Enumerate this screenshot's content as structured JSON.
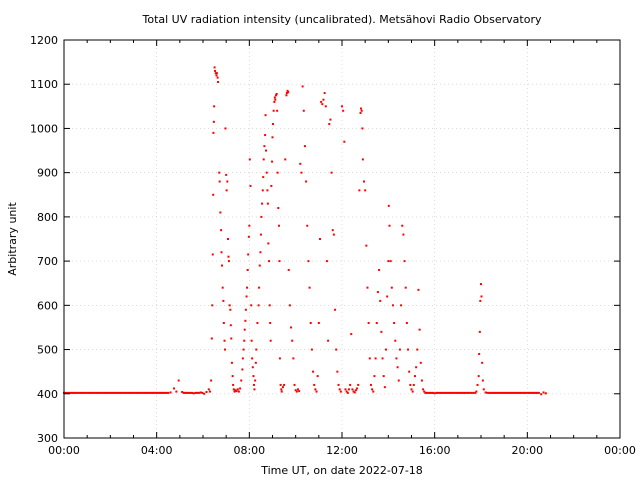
{
  "chart_data": {
    "type": "scatter",
    "title": "Total UV radiation intensity (uncalibrated). Metsähovi Radio Observatory",
    "xlabel": "Time UT, on date 2022-07-18",
    "ylabel": "Arbitrary unit",
    "xlim": [
      "00:00",
      "24:00"
    ],
    "ylim": [
      300,
      1200
    ],
    "x_ticks": [
      "00:00",
      "04:00",
      "08:00",
      "12:00",
      "16:00",
      "20:00",
      "00:00"
    ],
    "y_ticks": [
      "300",
      "400",
      "500",
      "600",
      "700",
      "800",
      "900",
      "1000",
      "1100",
      "1200"
    ],
    "grid": true,
    "legend": "none",
    "color": "#ff0000",
    "series": [
      {
        "x_unit": "hours UT",
        "points": [
          [
            0.0,
            402
          ],
          [
            0.5,
            402
          ],
          [
            1.0,
            402
          ],
          [
            1.5,
            402
          ],
          [
            2.0,
            402
          ],
          [
            2.5,
            402
          ],
          [
            3.0,
            402
          ],
          [
            3.5,
            402
          ],
          [
            4.0,
            402
          ],
          [
            4.5,
            402
          ],
          [
            4.6,
            403
          ],
          [
            4.75,
            412
          ],
          [
            4.85,
            405
          ],
          [
            4.95,
            430
          ],
          [
            5.1,
            404
          ],
          [
            5.3,
            402
          ],
          [
            5.6,
            401
          ],
          [
            5.9,
            403
          ],
          [
            6.05,
            400
          ],
          [
            6.15,
            404
          ],
          [
            6.25,
            410
          ],
          [
            6.3,
            405
          ],
          [
            6.35,
            430
          ],
          [
            6.38,
            525
          ],
          [
            6.4,
            600
          ],
          [
            6.42,
            715
          ],
          [
            6.44,
            850
          ],
          [
            6.45,
            990
          ],
          [
            6.47,
            1015
          ],
          [
            6.48,
            1050
          ],
          [
            6.5,
            1138
          ],
          [
            6.52,
            1130
          ],
          [
            6.55,
            1125
          ],
          [
            6.58,
            1120
          ],
          [
            6.6,
            1125
          ],
          [
            6.63,
            1115
          ],
          [
            6.65,
            1105
          ],
          [
            6.7,
            900
          ],
          [
            6.72,
            880
          ],
          [
            6.75,
            810
          ],
          [
            6.78,
            770
          ],
          [
            6.8,
            720
          ],
          [
            6.82,
            690
          ],
          [
            6.85,
            640
          ],
          [
            6.88,
            610
          ],
          [
            6.9,
            560
          ],
          [
            6.93,
            520
          ],
          [
            6.95,
            500
          ],
          [
            6.97,
            1000
          ],
          [
            7.0,
            895
          ],
          [
            7.02,
            860
          ],
          [
            7.05,
            880
          ],
          [
            7.08,
            750
          ],
          [
            7.1,
            710
          ],
          [
            7.12,
            700
          ],
          [
            7.15,
            600
          ],
          [
            7.18,
            590
          ],
          [
            7.2,
            555
          ],
          [
            7.22,
            525
          ],
          [
            7.25,
            470
          ],
          [
            7.28,
            440
          ],
          [
            7.3,
            420
          ],
          [
            7.33,
            410
          ],
          [
            7.36,
            405
          ],
          [
            7.4,
            408
          ],
          [
            7.45,
            406
          ],
          [
            7.5,
            410
          ],
          [
            7.55,
            405
          ],
          [
            7.6,
            412
          ],
          [
            7.65,
            430
          ],
          [
            7.7,
            455
          ],
          [
            7.72,
            480
          ],
          [
            7.75,
            500
          ],
          [
            7.78,
            520
          ],
          [
            7.8,
            545
          ],
          [
            7.83,
            565
          ],
          [
            7.85,
            590
          ],
          [
            7.88,
            620
          ],
          [
            7.9,
            640
          ],
          [
            7.93,
            680
          ],
          [
            7.95,
            715
          ],
          [
            7.98,
            755
          ],
          [
            8.0,
            780
          ],
          [
            8.02,
            930
          ],
          [
            8.05,
            870
          ],
          [
            8.08,
            600
          ],
          [
            8.1,
            520
          ],
          [
            8.12,
            480
          ],
          [
            8.15,
            460
          ],
          [
            8.18,
            440
          ],
          [
            8.2,
            420
          ],
          [
            8.22,
            410
          ],
          [
            8.25,
            430
          ],
          [
            8.28,
            470
          ],
          [
            8.3,
            500
          ],
          [
            8.35,
            560
          ],
          [
            8.4,
            600
          ],
          [
            8.42,
            640
          ],
          [
            8.45,
            690
          ],
          [
            8.48,
            720
          ],
          [
            8.5,
            760
          ],
          [
            8.52,
            800
          ],
          [
            8.55,
            830
          ],
          [
            8.58,
            860
          ],
          [
            8.6,
            890
          ],
          [
            8.62,
            930
          ],
          [
            8.65,
            960
          ],
          [
            8.68,
            985
          ],
          [
            8.7,
            1030
          ],
          [
            8.72,
            950
          ],
          [
            8.75,
            900
          ],
          [
            8.78,
            860
          ],
          [
            8.8,
            830
          ],
          [
            8.82,
            740
          ],
          [
            8.85,
            700
          ],
          [
            8.88,
            600
          ],
          [
            8.9,
            560
          ],
          [
            8.92,
            520
          ],
          [
            8.95,
            870
          ],
          [
            8.98,
            925
          ],
          [
            9.0,
            980
          ],
          [
            9.02,
            1010
          ],
          [
            9.05,
            1040
          ],
          [
            9.08,
            1060
          ],
          [
            9.1,
            1070
          ],
          [
            9.12,
            1065
          ],
          [
            9.15,
            1075
          ],
          [
            9.18,
            1078
          ],
          [
            9.2,
            1040
          ],
          [
            9.22,
            900
          ],
          [
            9.25,
            820
          ],
          [
            9.28,
            780
          ],
          [
            9.3,
            700
          ],
          [
            9.32,
            480
          ],
          [
            9.35,
            420
          ],
          [
            9.38,
            410
          ],
          [
            9.4,
            405
          ],
          [
            9.45,
            415
          ],
          [
            9.5,
            420
          ],
          [
            9.55,
            930
          ],
          [
            9.6,
            1075
          ],
          [
            9.62,
            1080
          ],
          [
            9.65,
            1085
          ],
          [
            9.68,
            1082
          ],
          [
            9.7,
            680
          ],
          [
            9.75,
            600
          ],
          [
            9.8,
            550
          ],
          [
            9.85,
            520
          ],
          [
            9.9,
            480
          ],
          [
            9.95,
            420
          ],
          [
            10.0,
            408
          ],
          [
            10.05,
            405
          ],
          [
            10.1,
            410
          ],
          [
            10.15,
            406
          ],
          [
            10.2,
            920
          ],
          [
            10.25,
            900
          ],
          [
            10.3,
            1095
          ],
          [
            10.35,
            1040
          ],
          [
            10.4,
            960
          ],
          [
            10.45,
            880
          ],
          [
            10.5,
            780
          ],
          [
            10.55,
            700
          ],
          [
            10.6,
            640
          ],
          [
            10.65,
            560
          ],
          [
            10.7,
            500
          ],
          [
            10.75,
            450
          ],
          [
            10.8,
            420
          ],
          [
            10.85,
            410
          ],
          [
            10.9,
            405
          ],
          [
            10.95,
            440
          ],
          [
            11.0,
            560
          ],
          [
            11.05,
            750
          ],
          [
            11.1,
            1060
          ],
          [
            11.15,
            1055
          ],
          [
            11.2,
            1065
          ],
          [
            11.25,
            1080
          ],
          [
            11.3,
            1050
          ],
          [
            11.35,
            700
          ],
          [
            11.4,
            520
          ],
          [
            11.45,
            1010
          ],
          [
            11.5,
            1020
          ],
          [
            11.55,
            900
          ],
          [
            11.6,
            770
          ],
          [
            11.65,
            760
          ],
          [
            11.7,
            590
          ],
          [
            11.75,
            500
          ],
          [
            11.8,
            450
          ],
          [
            11.85,
            420
          ],
          [
            11.9,
            410
          ],
          [
            11.95,
            405
          ],
          [
            12.0,
            1050
          ],
          [
            12.05,
            1040
          ],
          [
            12.1,
            970
          ],
          [
            12.15,
            410
          ],
          [
            12.2,
            405
          ],
          [
            12.25,
            402
          ],
          [
            12.3,
            410
          ],
          [
            12.35,
            420
          ],
          [
            12.4,
            535
          ],
          [
            12.45,
            410
          ],
          [
            12.5,
            405
          ],
          [
            12.55,
            403
          ],
          [
            12.6,
            408
          ],
          [
            12.65,
            412
          ],
          [
            12.7,
            420
          ],
          [
            12.75,
            860
          ],
          [
            12.8,
            1035
          ],
          [
            12.82,
            1045
          ],
          [
            12.85,
            1040
          ],
          [
            12.88,
            1000
          ],
          [
            12.9,
            930
          ],
          [
            12.95,
            880
          ],
          [
            13.0,
            860
          ],
          [
            13.05,
            735
          ],
          [
            13.1,
            640
          ],
          [
            13.15,
            560
          ],
          [
            13.2,
            480
          ],
          [
            13.25,
            420
          ],
          [
            13.3,
            410
          ],
          [
            13.35,
            405
          ],
          [
            13.4,
            440
          ],
          [
            13.45,
            480
          ],
          [
            13.5,
            560
          ],
          [
            13.55,
            630
          ],
          [
            13.6,
            680
          ],
          [
            13.65,
            610
          ],
          [
            13.7,
            540
          ],
          [
            13.75,
            480
          ],
          [
            13.8,
            440
          ],
          [
            13.85,
            415
          ],
          [
            13.9,
            500
          ],
          [
            13.95,
            620
          ],
          [
            14.0,
            700
          ],
          [
            14.02,
            825
          ],
          [
            14.05,
            780
          ],
          [
            14.1,
            700
          ],
          [
            14.15,
            640
          ],
          [
            14.2,
            600
          ],
          [
            14.25,
            560
          ],
          [
            14.3,
            520
          ],
          [
            14.35,
            480
          ],
          [
            14.4,
            460
          ],
          [
            14.45,
            430
          ],
          [
            14.5,
            500
          ],
          [
            14.55,
            600
          ],
          [
            14.6,
            780
          ],
          [
            14.65,
            760
          ],
          [
            14.7,
            700
          ],
          [
            14.75,
            640
          ],
          [
            14.8,
            560
          ],
          [
            14.85,
            500
          ],
          [
            14.9,
            450
          ],
          [
            14.95,
            420
          ],
          [
            15.0,
            410
          ],
          [
            15.05,
            405
          ],
          [
            15.1,
            420
          ],
          [
            15.15,
            440
          ],
          [
            15.2,
            460
          ],
          [
            15.25,
            500
          ],
          [
            15.3,
            635
          ],
          [
            15.35,
            545
          ],
          [
            15.4,
            470
          ],
          [
            15.45,
            430
          ],
          [
            15.5,
            410
          ],
          [
            15.55,
            405
          ],
          [
            15.6,
            402
          ],
          [
            15.8,
            402
          ],
          [
            16.0,
            401
          ],
          [
            16.5,
            402
          ],
          [
            17.0,
            402
          ],
          [
            17.5,
            402
          ],
          [
            17.75,
            402
          ],
          [
            17.8,
            405
          ],
          [
            17.85,
            420
          ],
          [
            17.9,
            440
          ],
          [
            17.92,
            490
          ],
          [
            17.95,
            540
          ],
          [
            17.97,
            610
          ],
          [
            18.0,
            648
          ],
          [
            18.02,
            620
          ],
          [
            18.05,
            470
          ],
          [
            18.08,
            430
          ],
          [
            18.12,
            410
          ],
          [
            18.2,
            403
          ],
          [
            18.5,
            402
          ],
          [
            19.0,
            402
          ],
          [
            19.5,
            402
          ],
          [
            20.0,
            402
          ],
          [
            20.5,
            402
          ],
          [
            20.6,
            399
          ],
          [
            20.7,
            403
          ],
          [
            20.8,
            401
          ]
        ]
      }
    ]
  }
}
